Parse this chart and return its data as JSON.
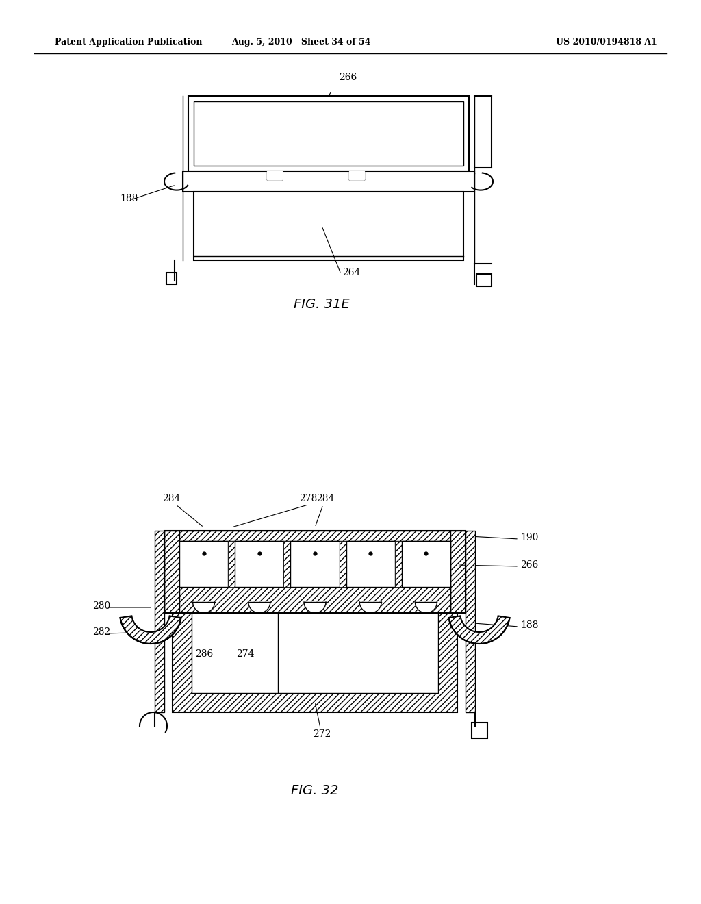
{
  "header_left": "Patent Application Publication",
  "header_mid": "Aug. 5, 2010   Sheet 34 of 54",
  "header_right": "US 2010/0194818 A1",
  "fig1_label": "FIG. 31E",
  "fig2_label": "FIG. 32",
  "bg_color": "#ffffff",
  "line_color": "#000000"
}
